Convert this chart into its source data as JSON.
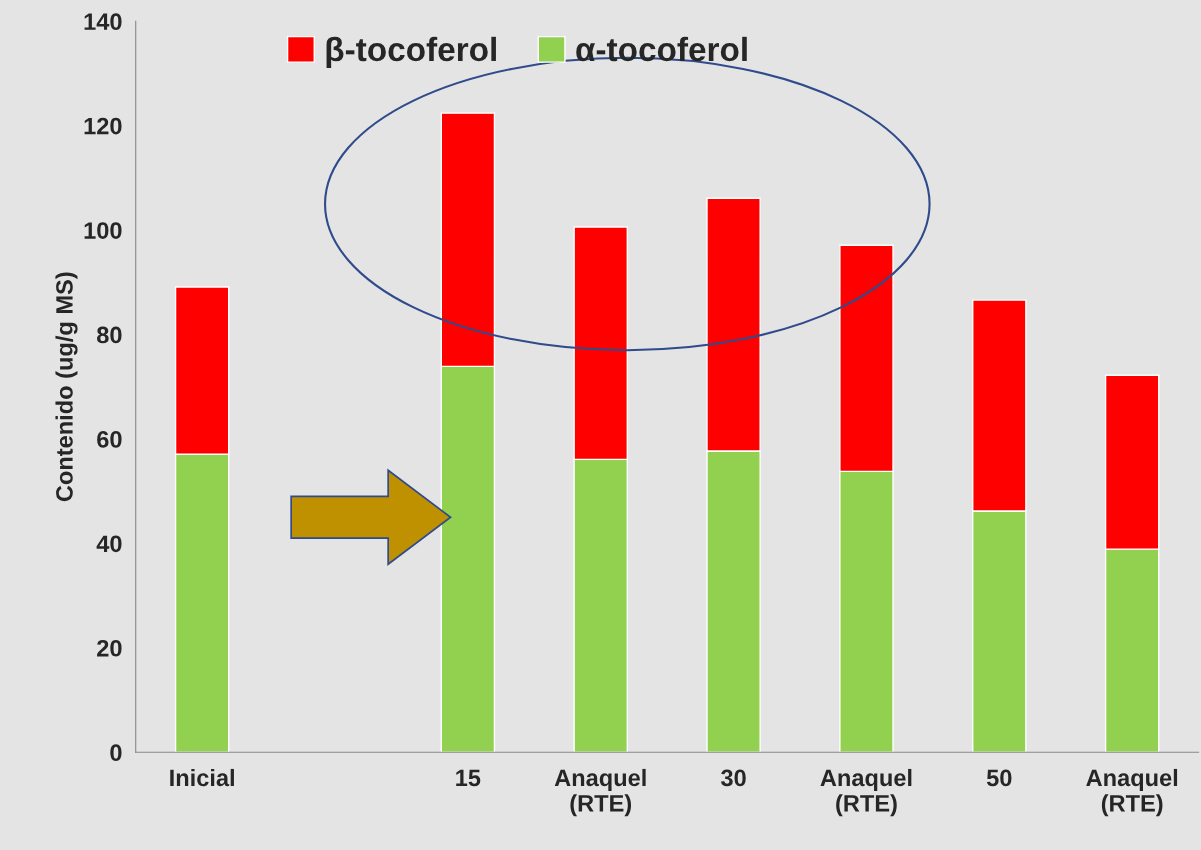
{
  "chart_data": {
    "type": "bar",
    "stacked": true,
    "ylabel": "Contenido (ug/g MS)",
    "categories": [
      "Inicial",
      null,
      "15",
      "Anaquel\n(RTE)",
      "30",
      "Anaquel\n(RTE)",
      "50",
      "Anaquel\n(RTE)"
    ],
    "series": [
      {
        "name": "α-tocoferol",
        "color": "#92d050",
        "values": [
          57.1,
          null,
          73.9,
          56.1,
          57.7,
          53.8,
          46.2,
          38.9
        ]
      },
      {
        "name": "β-tocoferol",
        "color": "#ff0000",
        "values": [
          32.0,
          null,
          48.5,
          44.5,
          48.4,
          43.3,
          40.4,
          33.3
        ]
      }
    ],
    "ylim": [
      0,
      140
    ],
    "yticks": [
      0,
      20,
      40,
      60,
      80,
      100,
      120,
      140
    ],
    "grid": false,
    "legend": "top"
  }
}
